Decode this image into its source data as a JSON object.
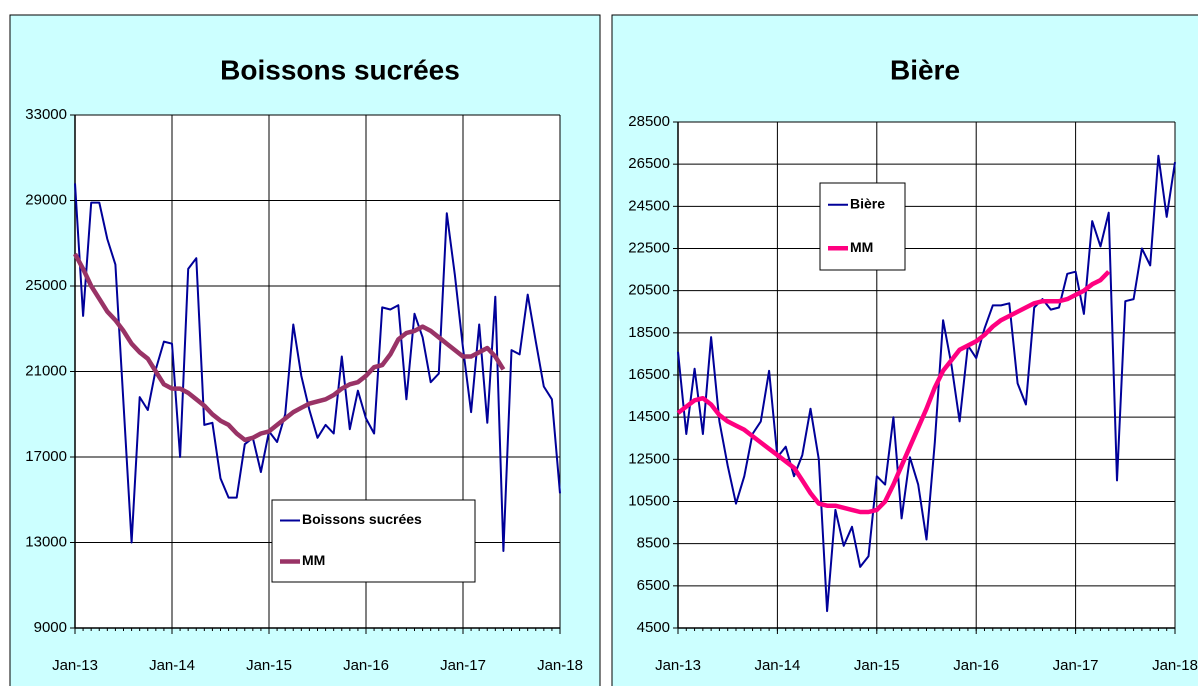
{
  "chart_data": [
    {
      "type": "line",
      "title": "Boissons sucrées",
      "categories": [
        "Jan-13",
        null,
        null,
        null,
        null,
        null,
        null,
        null,
        null,
        null,
        null,
        null,
        "Jan-14",
        null,
        null,
        null,
        null,
        null,
        null,
        null,
        null,
        null,
        null,
        null,
        "Jan-15",
        null,
        null,
        null,
        null,
        null,
        null,
        null,
        null,
        null,
        null,
        null,
        "Jan-16",
        null,
        null,
        null,
        null,
        null,
        null,
        null,
        null,
        null,
        null,
        null,
        "Jan-17",
        null,
        null,
        null,
        null,
        null,
        null,
        null,
        null,
        null,
        null,
        null,
        "Jan-18"
      ],
      "series": [
        {
          "name": "Boissons sucrées",
          "color": "#000099",
          "values": [
            29800,
            23600,
            28900,
            28900,
            27200,
            26000,
            19500,
            13000,
            19800,
            19200,
            21100,
            22400,
            22300,
            17000,
            25800,
            26300,
            18500,
            18600,
            16000,
            15100,
            15100,
            17600,
            17900,
            16300,
            18200,
            17700,
            19000,
            23200,
            20800,
            19200,
            17900,
            18500,
            18100,
            21700,
            18300,
            20100,
            18800,
            18100,
            24000,
            23900,
            24100,
            19700,
            23700,
            22600,
            20500,
            20900,
            28400,
            25500,
            22100,
            19100,
            23200,
            18600,
            24500,
            12600,
            22000,
            21800,
            24600,
            22400,
            20300,
            19700,
            15300
          ]
        },
        {
          "name": "MM",
          "color": "#993366",
          "values": [
            26500,
            25800,
            25000,
            24400,
            23800,
            23400,
            22900,
            22300,
            21900,
            21600,
            21000,
            20400,
            20200,
            20200,
            20000,
            19700,
            19400,
            19000,
            18700,
            18500,
            18100,
            17800,
            17900,
            18100,
            18200,
            18500,
            18800,
            19100,
            19300,
            19500,
            19600,
            19700,
            19900,
            20200,
            20400,
            20500,
            20800,
            21200,
            21300,
            21800,
            22500,
            22800,
            22900,
            23100,
            22900,
            22600,
            22300,
            22000,
            21700,
            21700,
            21900,
            22100,
            21700,
            21100,
            null,
            null,
            null,
            null,
            null,
            null,
            null
          ]
        }
      ],
      "ylim": [
        9000,
        33000
      ],
      "yticks": [
        9000,
        13000,
        17000,
        21000,
        25000,
        29000,
        33000
      ],
      "grid": true,
      "legend": "lower-right"
    },
    {
      "type": "line",
      "title": "Bière",
      "categories": [
        "Jan-13",
        null,
        null,
        null,
        null,
        null,
        null,
        null,
        null,
        null,
        null,
        null,
        "Jan-14",
        null,
        null,
        null,
        null,
        null,
        null,
        null,
        null,
        null,
        null,
        null,
        "Jan-15",
        null,
        null,
        null,
        null,
        null,
        null,
        null,
        null,
        null,
        null,
        null,
        "Jan-16",
        null,
        null,
        null,
        null,
        null,
        null,
        null,
        null,
        null,
        null,
        null,
        "Jan-17",
        null,
        null,
        null,
        null,
        null,
        null,
        null,
        null,
        null,
        null,
        null,
        "Jan-18"
      ],
      "series": [
        {
          "name": "Bière",
          "color": "#000099",
          "values": [
            17600,
            13700,
            16800,
            13700,
            18300,
            14300,
            12200,
            10400,
            11700,
            13700,
            14300,
            16700,
            12600,
            13100,
            11700,
            12700,
            14900,
            12500,
            5300,
            10100,
            8400,
            9300,
            7400,
            7900,
            11700,
            11300,
            14500,
            9700,
            12600,
            11300,
            8700,
            13300,
            19100,
            17000,
            14300,
            17900,
            17300,
            18700,
            19800,
            19800,
            19900,
            16100,
            15100,
            19700,
            20100,
            19600,
            19700,
            21300,
            21400,
            19400,
            23800,
            22600,
            24200,
            11500,
            20000,
            20100,
            22500,
            21700,
            26900,
            24000,
            26600
          ]
        },
        {
          "name": "MM",
          "color": "#ff0080",
          "values": [
            14700,
            15000,
            15300,
            15400,
            15100,
            14600,
            14300,
            14100,
            13900,
            13600,
            13300,
            13000,
            12700,
            12400,
            12100,
            11500,
            10900,
            10400,
            10300,
            10300,
            10200,
            10100,
            10000,
            10000,
            10100,
            10500,
            11300,
            12200,
            13100,
            14000,
            14900,
            15900,
            16700,
            17200,
            17700,
            17900,
            18100,
            18400,
            18800,
            19100,
            19300,
            19500,
            19700,
            19900,
            20000,
            20000,
            20000,
            20100,
            20300,
            20500,
            20800,
            21000,
            21400,
            null,
            null,
            null,
            null,
            null,
            null,
            null,
            null
          ]
        }
      ],
      "ylim": [
        4500,
        28500
      ],
      "yticks": [
        4500,
        6500,
        8500,
        10500,
        12500,
        14500,
        16500,
        18500,
        20500,
        22500,
        24500,
        26500,
        28500
      ],
      "grid": true,
      "legend": "upper-left"
    }
  ]
}
